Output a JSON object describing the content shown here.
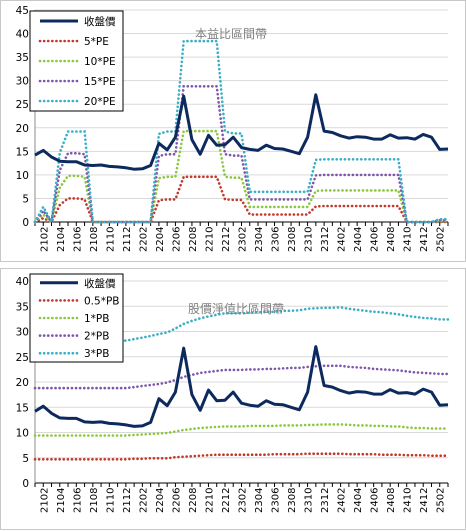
{
  "chart_data": [
    {
      "type": "line",
      "title": "本益比區間帶",
      "ylim": [
        0,
        45
      ],
      "yticks": [
        0,
        5,
        10,
        15,
        20,
        25,
        30,
        35,
        40,
        45
      ],
      "x": [
        "2101",
        "2102",
        "2103",
        "2104",
        "2105",
        "2106",
        "2107",
        "2108",
        "2109",
        "2110",
        "2111",
        "2112",
        "2201",
        "2202",
        "2203",
        "2204",
        "2205",
        "2206",
        "2207",
        "2208",
        "2209",
        "2210",
        "2211",
        "2212",
        "2301",
        "2302",
        "2303",
        "2304",
        "2305",
        "2306",
        "2307",
        "2308",
        "2309",
        "2310",
        "2311",
        "2312",
        "2401",
        "2402",
        "2403",
        "2404",
        "2405",
        "2406",
        "2407",
        "2408",
        "2409",
        "2410",
        "2411",
        "2412",
        "2501",
        "2502",
        "2503"
      ],
      "xtick_labels": [
        "2102",
        "2104",
        "2106",
        "2108",
        "2110",
        "2112",
        "2202",
        "2204",
        "2206",
        "2208",
        "2210",
        "2212",
        "2302",
        "2304",
        "2306",
        "2308",
        "2310",
        "2312",
        "2402",
        "2404",
        "2406",
        "2408",
        "2410",
        "2412",
        "2502"
      ],
      "grid": true,
      "legend_position": "top-left",
      "series": [
        {
          "name": "收盤價",
          "color": "#0d2a5e",
          "style": "solid",
          "values": [
            14.2,
            15.2,
            13.8,
            12.9,
            12.8,
            12.8,
            12.1,
            12.0,
            12.1,
            11.8,
            11.7,
            11.5,
            11.2,
            11.3,
            12.0,
            16.7,
            15.3,
            18.0,
            26.7,
            17.5,
            14.4,
            18.4,
            16.3,
            16.4,
            18.0,
            15.8,
            15.4,
            15.2,
            16.3,
            15.6,
            15.5,
            15.0,
            14.5,
            18.0,
            27.0,
            19.3,
            19.0,
            18.3,
            17.8,
            18.1,
            18.0,
            17.6,
            17.6,
            18.5,
            17.8,
            17.9,
            17.6,
            18.6,
            18.0,
            15.4,
            15.5
          ]
        },
        {
          "name": "5*PE",
          "color": "#c0392b",
          "style": "dot",
          "values": [
            0,
            0.8,
            0,
            3.6,
            5.0,
            5.0,
            4.8,
            0,
            0,
            0,
            0,
            0,
            0,
            0,
            0,
            4.6,
            4.8,
            4.8,
            9.6,
            9.6,
            9.6,
            9.6,
            9.6,
            4.8,
            4.7,
            4.7,
            1.6,
            1.6,
            1.6,
            1.6,
            1.6,
            1.6,
            1.6,
            1.6,
            3.3,
            3.4,
            3.4,
            3.4,
            3.4,
            3.4,
            3.4,
            3.4,
            3.4,
            3.4,
            3.4,
            0,
            0,
            0,
            0,
            0,
            0
          ]
        },
        {
          "name": "10*PE",
          "color": "#8dc63f",
          "style": "dot",
          "values": [
            0,
            1.6,
            0,
            7.3,
            9.8,
            9.8,
            9.6,
            0,
            0,
            0,
            0,
            0,
            0,
            0,
            0,
            9.3,
            9.6,
            9.6,
            19.3,
            19.3,
            19.3,
            19.3,
            19.3,
            9.6,
            9.4,
            9.4,
            3.2,
            3.2,
            3.2,
            3.2,
            3.2,
            3.2,
            3.2,
            3.2,
            6.6,
            6.7,
            6.7,
            6.7,
            6.7,
            6.7,
            6.7,
            6.7,
            6.7,
            6.7,
            6.7,
            0,
            0,
            0,
            0,
            0.2,
            0.2
          ]
        },
        {
          "name": "15*PE",
          "color": "#7e57a8",
          "style": "dot",
          "values": [
            0,
            2.4,
            0,
            11.0,
            14.6,
            14.6,
            14.4,
            0,
            0,
            0,
            0,
            0,
            0,
            0,
            0,
            14.0,
            14.4,
            14.4,
            28.8,
            28.8,
            28.8,
            28.8,
            28.8,
            14.4,
            14.1,
            14.1,
            4.8,
            4.8,
            4.8,
            4.8,
            4.8,
            4.8,
            4.8,
            4.8,
            9.9,
            10.0,
            10.0,
            10.0,
            10.0,
            10.0,
            10.0,
            10.0,
            10.0,
            10.0,
            10.0,
            0,
            0,
            0,
            0,
            0.4,
            0.4
          ]
        },
        {
          "name": "20*PE",
          "color": "#3aaec4",
          "style": "dot",
          "values": [
            0,
            3.2,
            0,
            14.7,
            19.2,
            19.2,
            19.2,
            0,
            0,
            0,
            0,
            0,
            0,
            0,
            0,
            18.7,
            19.2,
            19.2,
            38.4,
            38.4,
            38.4,
            38.4,
            38.4,
            19.2,
            18.8,
            18.8,
            6.4,
            6.4,
            6.4,
            6.4,
            6.4,
            6.4,
            6.4,
            6.4,
            13.2,
            13.3,
            13.3,
            13.3,
            13.3,
            13.3,
            13.3,
            13.3,
            13.3,
            13.3,
            13.3,
            0,
            0,
            0,
            0,
            0.6,
            0.6
          ]
        }
      ]
    },
    {
      "type": "line",
      "title": "股價淨值比區間帶",
      "ylim": [
        0,
        40
      ],
      "yticks": [
        0,
        5,
        10,
        15,
        20,
        25,
        30,
        35,
        40
      ],
      "x": [
        "2101",
        "2102",
        "2103",
        "2104",
        "2105",
        "2106",
        "2107",
        "2108",
        "2109",
        "2110",
        "2111",
        "2112",
        "2201",
        "2202",
        "2203",
        "2204",
        "2205",
        "2206",
        "2207",
        "2208",
        "2209",
        "2210",
        "2211",
        "2212",
        "2301",
        "2302",
        "2303",
        "2304",
        "2305",
        "2306",
        "2307",
        "2308",
        "2309",
        "2310",
        "2311",
        "2312",
        "2401",
        "2402",
        "2403",
        "2404",
        "2405",
        "2406",
        "2407",
        "2408",
        "2409",
        "2410",
        "2411",
        "2412",
        "2501",
        "2502",
        "2503"
      ],
      "xtick_labels": [
        "2102",
        "2104",
        "2106",
        "2108",
        "2110",
        "2112",
        "2202",
        "2204",
        "2206",
        "2208",
        "2210",
        "2212",
        "2302",
        "2304",
        "2306",
        "2308",
        "2310",
        "2312",
        "2402",
        "2404",
        "2406",
        "2408",
        "2410",
        "2412",
        "2502"
      ],
      "grid": true,
      "legend_position": "top-left",
      "series": [
        {
          "name": "收盤價",
          "color": "#0d2a5e",
          "style": "solid",
          "values": [
            14.2,
            15.2,
            13.8,
            12.9,
            12.8,
            12.8,
            12.1,
            12.0,
            12.1,
            11.8,
            11.7,
            11.5,
            11.2,
            11.3,
            12.0,
            16.7,
            15.3,
            18.0,
            26.7,
            17.5,
            14.4,
            18.4,
            16.3,
            16.4,
            18.0,
            15.8,
            15.4,
            15.2,
            16.3,
            15.6,
            15.5,
            15.0,
            14.5,
            18.0,
            27.0,
            19.3,
            19.0,
            18.3,
            17.8,
            18.1,
            18.0,
            17.6,
            17.6,
            18.5,
            17.8,
            17.9,
            17.6,
            18.6,
            18.0,
            15.4,
            15.5
          ]
        },
        {
          "name": "0.5*PB",
          "color": "#c0392b",
          "style": "dot",
          "values": [
            4.7,
            4.7,
            4.7,
            4.7,
            4.7,
            4.7,
            4.7,
            4.7,
            4.7,
            4.7,
            4.7,
            4.7,
            4.8,
            4.8,
            4.9,
            4.9,
            4.9,
            5.1,
            5.2,
            5.3,
            5.4,
            5.5,
            5.6,
            5.6,
            5.6,
            5.6,
            5.6,
            5.6,
            5.6,
            5.7,
            5.7,
            5.7,
            5.7,
            5.8,
            5.8,
            5.8,
            5.8,
            5.8,
            5.7,
            5.7,
            5.7,
            5.7,
            5.6,
            5.6,
            5.6,
            5.5,
            5.5,
            5.5,
            5.4,
            5.4,
            5.4
          ]
        },
        {
          "name": "1*PB",
          "color": "#8dc63f",
          "style": "dot",
          "values": [
            9.4,
            9.4,
            9.4,
            9.4,
            9.4,
            9.4,
            9.4,
            9.4,
            9.4,
            9.4,
            9.4,
            9.4,
            9.5,
            9.6,
            9.7,
            9.8,
            9.9,
            10.2,
            10.5,
            10.7,
            10.9,
            11.0,
            11.1,
            11.2,
            11.2,
            11.2,
            11.3,
            11.3,
            11.3,
            11.3,
            11.4,
            11.4,
            11.4,
            11.5,
            11.5,
            11.6,
            11.6,
            11.6,
            11.5,
            11.4,
            11.4,
            11.3,
            11.3,
            11.2,
            11.2,
            11.0,
            10.9,
            10.9,
            10.8,
            10.8,
            10.8
          ]
        },
        {
          "name": "2*PB",
          "color": "#7e57a8",
          "style": "dot",
          "values": [
            18.8,
            18.8,
            18.8,
            18.8,
            18.8,
            18.8,
            18.8,
            18.8,
            18.8,
            18.8,
            18.8,
            18.8,
            19.0,
            19.2,
            19.4,
            19.6,
            19.9,
            20.4,
            21.0,
            21.4,
            21.8,
            22.0,
            22.2,
            22.4,
            22.4,
            22.4,
            22.5,
            22.5,
            22.6,
            22.6,
            22.7,
            22.8,
            22.8,
            23.0,
            23.1,
            23.2,
            23.2,
            23.2,
            23.0,
            22.9,
            22.8,
            22.6,
            22.5,
            22.4,
            22.3,
            22.1,
            21.9,
            21.8,
            21.7,
            21.6,
            21.6
          ]
        },
        {
          "name": "3*PB",
          "color": "#3aaec4",
          "style": "dot",
          "values": [
            28.2,
            28.2,
            28.2,
            28.2,
            28.2,
            28.2,
            28.2,
            28.2,
            28.2,
            28.2,
            28.2,
            28.2,
            28.5,
            28.8,
            29.1,
            29.5,
            29.8,
            30.6,
            31.5,
            32.1,
            32.6,
            33.0,
            33.3,
            33.6,
            33.6,
            33.6,
            33.7,
            33.8,
            33.9,
            33.9,
            34.1,
            34.1,
            34.2,
            34.5,
            34.6,
            34.7,
            34.7,
            34.8,
            34.5,
            34.3,
            34.1,
            33.9,
            33.8,
            33.6,
            33.4,
            33.1,
            32.9,
            32.7,
            32.6,
            32.4,
            32.4
          ]
        }
      ]
    }
  ]
}
